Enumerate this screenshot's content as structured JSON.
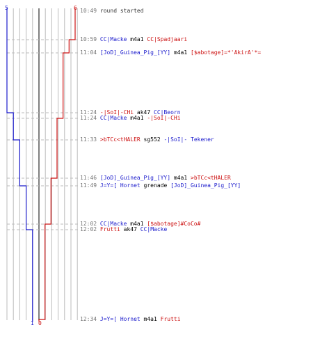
{
  "timeline": {
    "start_counts": {
      "blue": "5",
      "red": "6"
    },
    "end_counts": {
      "blue": "1",
      "red": "0"
    },
    "colors": {
      "blue": "#1a1acc",
      "red": "#cc1111",
      "grid": "#bbbbbb",
      "axis": "#555555",
      "dash": "#bbbbbb"
    }
  },
  "events": [
    {
      "time": "10:49",
      "parts": [
        {
          "text": "round started",
          "c": "t"
        }
      ]
    },
    {
      "time": "10:59",
      "parts": [
        {
          "text": "CC|Macke",
          "c": "b"
        },
        {
          "text": "m4a1",
          "c": "w"
        },
        {
          "text": "CC|Spadjaari",
          "c": "r"
        }
      ]
    },
    {
      "time": "11:04",
      "parts": [
        {
          "text": "[JoD]_Guinea_Pig_[YY]",
          "c": "b"
        },
        {
          "text": "m4a1",
          "c": "w"
        },
        {
          "text": "[$abotage]=*'AkirA'*=",
          "c": "r"
        }
      ]
    },
    {
      "time": "11:24",
      "parts": [
        {
          "text": "-|SoI|-CHi",
          "c": "r"
        },
        {
          "text": "ak47",
          "c": "w"
        },
        {
          "text": "CC|Beorn",
          "c": "b"
        }
      ]
    },
    {
      "time": "11:24",
      "parts": [
        {
          "text": "CC|Macke",
          "c": "b"
        },
        {
          "text": "m4a1",
          "c": "w"
        },
        {
          "text": "-|SoI|-CHi",
          "c": "r"
        }
      ]
    },
    {
      "time": "11:33",
      "parts": [
        {
          "text": ">bTCc<tHALER",
          "c": "r"
        },
        {
          "text": "sg552",
          "c": "w"
        },
        {
          "text": "-|SoI|- Tekener",
          "c": "b"
        }
      ]
    },
    {
      "time": "11:46",
      "parts": [
        {
          "text": "[JoD]_Guinea_Pig_[YY]",
          "c": "b"
        },
        {
          "text": "m4a1",
          "c": "w"
        },
        {
          "text": ">bTCc<tHALER",
          "c": "r"
        }
      ]
    },
    {
      "time": "11:49",
      "parts": [
        {
          "text": "J=Y=[ Hornet",
          "c": "b"
        },
        {
          "text": "grenade",
          "c": "w"
        },
        {
          "text": "[JoD]_Guinea_Pig_[YY]",
          "c": "b"
        }
      ]
    },
    {
      "time": "12:02",
      "parts": [
        {
          "text": "CC|Macke",
          "c": "b"
        },
        {
          "text": "m4a1",
          "c": "w"
        },
        {
          "text": "[$abotage]#CoCo#",
          "c": "r"
        }
      ]
    },
    {
      "time": "12:02",
      "parts": [
        {
          "text": "Frutti",
          "c": "r"
        },
        {
          "text": "ak47",
          "c": "w"
        },
        {
          "text": "CC|Macke",
          "c": "b"
        }
      ]
    },
    {
      "time": "12:34",
      "parts": [
        {
          "text": "J=Y=[ Hornet",
          "c": "b"
        },
        {
          "text": "m4a1",
          "c": "w"
        },
        {
          "text": "Frutti",
          "c": "r"
        }
      ]
    }
  ]
}
